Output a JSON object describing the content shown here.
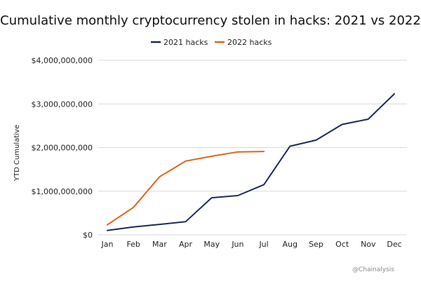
{
  "chart_data": {
    "type": "line",
    "title": "Cumulative monthly cryptocurrency stolen in hacks: 2021 vs 2022",
    "xlabel": "",
    "ylabel": "YTD Cumulative",
    "categories": [
      "Jan",
      "Feb",
      "Mar",
      "Apr",
      "May",
      "Jun",
      "Jul",
      "Aug",
      "Sep",
      "Oct",
      "Nov",
      "Dec"
    ],
    "ylim": [
      0,
      4000000000
    ],
    "yticks": [
      0,
      1000000000,
      2000000000,
      3000000000,
      4000000000
    ],
    "ytick_labels": [
      "$0",
      "$1,000,000,000",
      "$2,000,000,000",
      "$3,000,000,000",
      "$4,000,000,000"
    ],
    "grid": true,
    "legend_position": "top-center",
    "series": [
      {
        "name": "2021 hacks",
        "color": "#1e2a5a",
        "values": [
          100000000,
          180000000,
          240000000,
          300000000,
          850000000,
          900000000,
          1150000000,
          2030000000,
          2170000000,
          2530000000,
          2650000000,
          3230000000
        ]
      },
      {
        "name": "2022 hacks",
        "color": "#e0631c",
        "values": [
          230000000,
          630000000,
          1330000000,
          1690000000,
          1800000000,
          1900000000,
          1910000000,
          null,
          null,
          null,
          null,
          null
        ]
      }
    ]
  },
  "watermark": "@Chainalysis"
}
